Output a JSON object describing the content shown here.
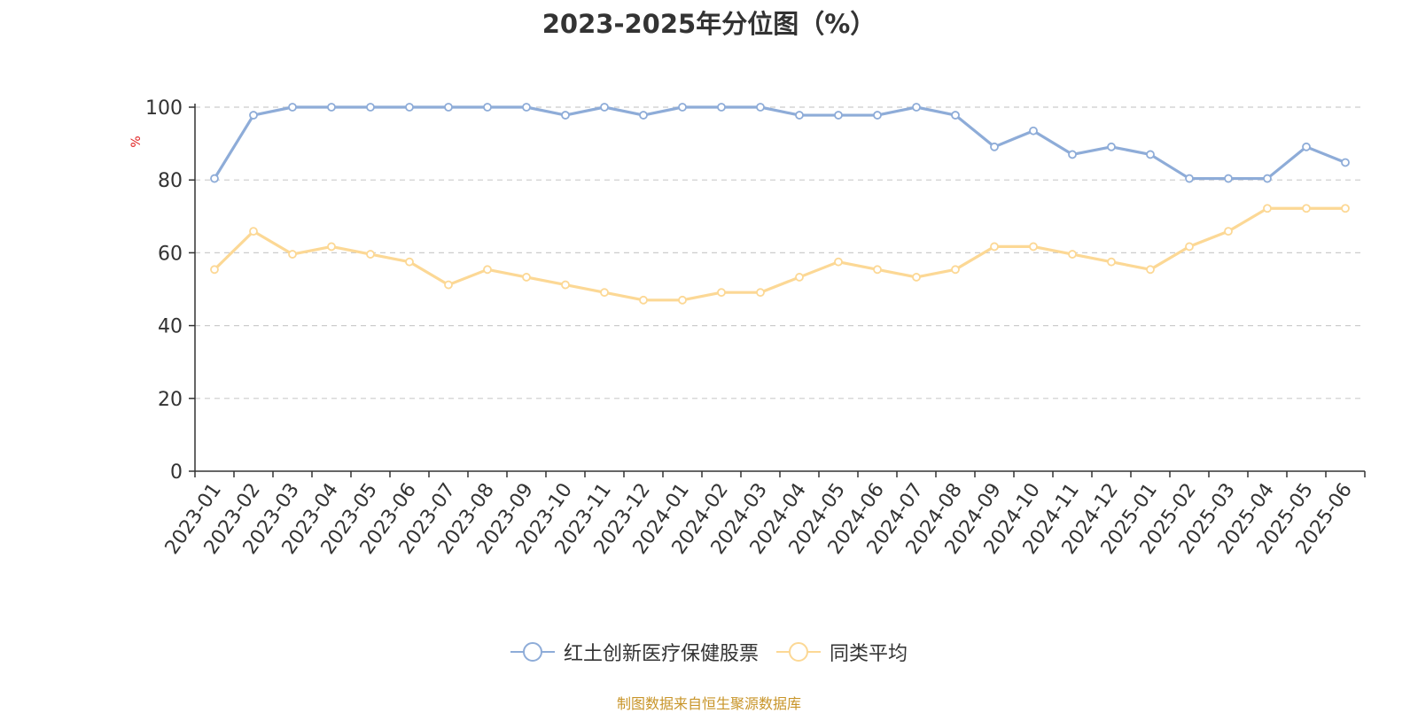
{
  "chart_data": {
    "type": "line",
    "title": "2023-2025年分位图（%）",
    "ylabel": "%",
    "ylim": [
      0,
      100
    ],
    "yticks": [
      0,
      20,
      40,
      60,
      80,
      100
    ],
    "grid": true,
    "legend_position": "bottom",
    "categories": [
      "2023-01",
      "2023-02",
      "2023-03",
      "2023-04",
      "2023-05",
      "2023-06",
      "2023-07",
      "2023-08",
      "2023-09",
      "2023-10",
      "2023-11",
      "2023-12",
      "2024-01",
      "2024-02",
      "2024-03",
      "2024-04",
      "2024-05",
      "2024-06",
      "2024-07",
      "2024-08",
      "2024-09",
      "2024-10",
      "2024-11",
      "2024-12",
      "2025-01",
      "2025-02",
      "2025-03",
      "2025-04",
      "2025-05",
      "2025-06"
    ],
    "series": [
      {
        "name": "红土创新医疗保健股票",
        "color": "#8eacd8",
        "values": [
          80.4,
          97.8,
          100,
          100,
          100,
          100,
          100,
          100,
          100,
          97.8,
          100,
          97.8,
          100,
          100,
          100,
          97.8,
          97.8,
          97.8,
          100,
          97.8,
          89.1,
          93.5,
          87,
          89.1,
          87,
          80.4,
          80.4,
          80.4,
          89.1,
          84.8
        ]
      },
      {
        "name": "同类平均",
        "color": "#fcd895",
        "values": [
          55.4,
          65.9,
          59.6,
          61.7,
          59.6,
          57.5,
          51.2,
          55.4,
          53.3,
          51.2,
          49.1,
          47,
          47,
          49.1,
          49.1,
          53.3,
          57.5,
          55.4,
          53.3,
          55.4,
          61.7,
          61.7,
          59.6,
          57.5,
          55.4,
          61.7,
          65.9,
          72.2,
          72.2,
          72.2
        ]
      }
    ]
  },
  "source_note": "制图数据来自恒生聚源数据库"
}
